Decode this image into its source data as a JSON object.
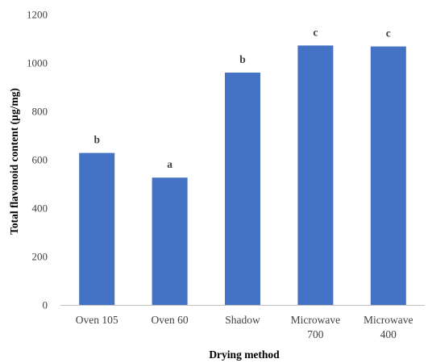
{
  "chart_data": {
    "type": "bar",
    "title": "",
    "xlabel": "Drying method",
    "ylabel": "Total flavonoid content (µg/mg)",
    "categories": [
      "Oven 105",
      "Oven 60",
      "Shadow",
      "Microwave 700",
      "Microwave 400"
    ],
    "category_lines": [
      [
        "Oven 105"
      ],
      [
        "Oven 60"
      ],
      [
        "Shadow"
      ],
      [
        "Microwave",
        "700"
      ],
      [
        "Microwave",
        "400"
      ]
    ],
    "values": [
      628,
      526,
      960,
      1072,
      1068
    ],
    "data_labels": [
      "b",
      "a",
      "b",
      "c",
      "c"
    ],
    "ylim": [
      0,
      1200
    ],
    "yticks": [
      0,
      200,
      400,
      600,
      800,
      1000,
      1200
    ],
    "grid": false,
    "legend": "none",
    "colors": {
      "bar": "#4472c4",
      "axis": "#bfbfbf",
      "text": "#404040"
    }
  }
}
